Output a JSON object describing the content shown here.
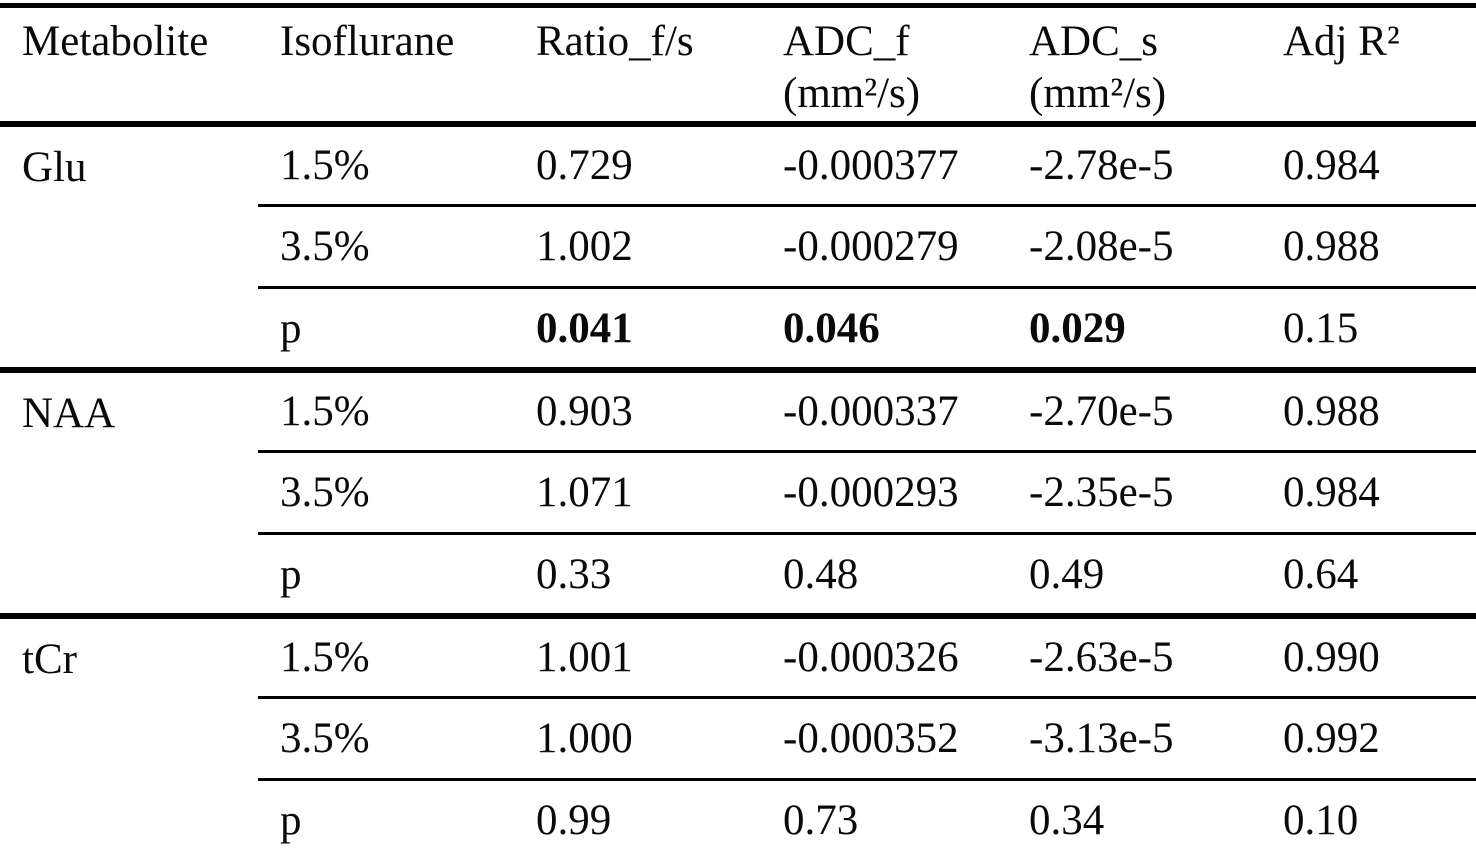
{
  "table": {
    "colors": {
      "text": "#0a0a0a",
      "border": "#000000",
      "background": "#ffffff"
    },
    "headers": [
      {
        "label": "Metabolite",
        "sub": ""
      },
      {
        "label": "Isoflurane",
        "sub": ""
      },
      {
        "label": "Ratio_f/s",
        "sub": ""
      },
      {
        "label": "ADC_f",
        "sub": "(mm²/s)"
      },
      {
        "label": "ADC_s",
        "sub": "(mm²/s)"
      },
      {
        "label": "Adj R²",
        "sub": ""
      }
    ],
    "groups": [
      {
        "metabolite": "Glu",
        "rows": [
          {
            "isoflurane": "1.5%",
            "ratio_fs": "0.729",
            "adc_f": "-0.000377",
            "adc_s": "-2.78e-5",
            "adj_r2": "0.984"
          },
          {
            "isoflurane": "3.5%",
            "ratio_fs": "1.002",
            "adc_f": "-0.000279",
            "adc_s": "-2.08e-5",
            "adj_r2": "0.988"
          },
          {
            "isoflurane": "p",
            "ratio_fs": "0.041",
            "adc_f": "0.046",
            "adc_s": "0.029",
            "adj_r2": "0.15"
          }
        ]
      },
      {
        "metabolite": "NAA",
        "rows": [
          {
            "isoflurane": "1.5%",
            "ratio_fs": "0.903",
            "adc_f": "-0.000337",
            "adc_s": "-2.70e-5",
            "adj_r2": "0.988"
          },
          {
            "isoflurane": "3.5%",
            "ratio_fs": "1.071",
            "adc_f": "-0.000293",
            "adc_s": "-2.35e-5",
            "adj_r2": "0.984"
          },
          {
            "isoflurane": "p",
            "ratio_fs": "0.33",
            "adc_f": "0.48",
            "adc_s": "0.49",
            "adj_r2": "0.64"
          }
        ]
      },
      {
        "metabolite": "tCr",
        "rows": [
          {
            "isoflurane": "1.5%",
            "ratio_fs": "1.001",
            "adc_f": "-0.000326",
            "adc_s": "-2.63e-5",
            "adj_r2": "0.990"
          },
          {
            "isoflurane": "3.5%",
            "ratio_fs": "1.000",
            "adc_f": "-0.000352",
            "adc_s": "-3.13e-5",
            "adj_r2": "0.992"
          },
          {
            "isoflurane": "p",
            "ratio_fs": "0.99",
            "adc_f": "0.73",
            "adc_s": "0.34",
            "adj_r2": "0.10"
          }
        ]
      }
    ]
  }
}
